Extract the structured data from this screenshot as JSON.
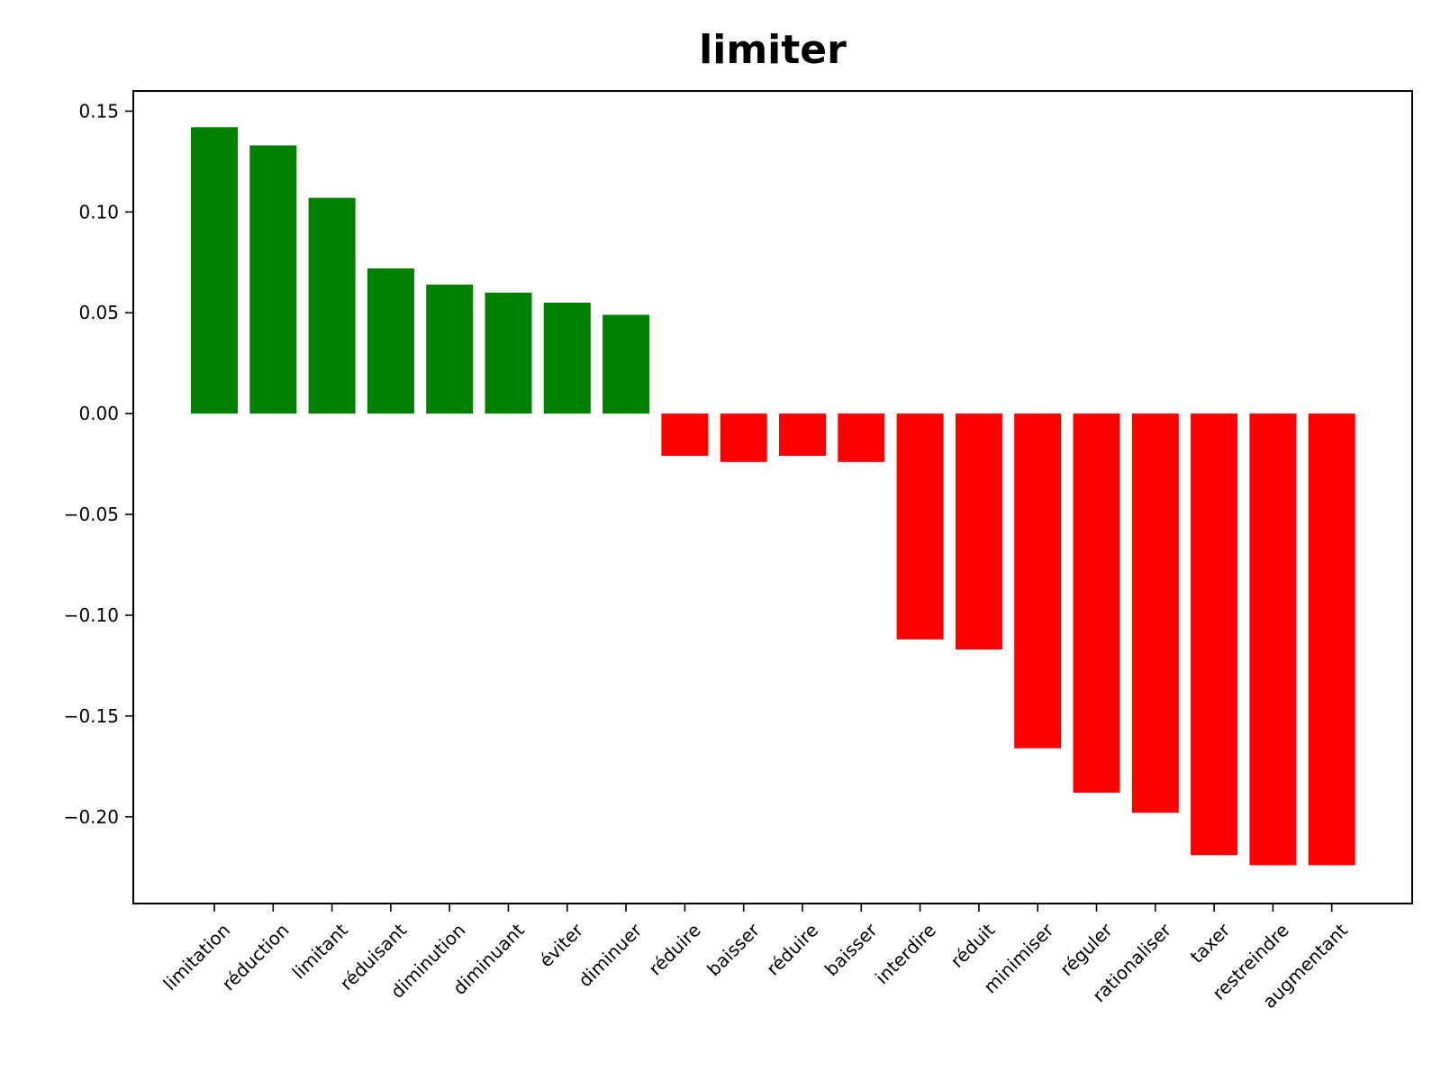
{
  "chart_data": {
    "type": "bar",
    "title": "limiter",
    "xlabel": "",
    "ylabel": "",
    "categories": [
      "limitation",
      "réduction",
      "limitant",
      "réduisant",
      "diminution",
      "diminuant",
      "éviter",
      "diminuer",
      "réduire",
      "baisser",
      "réduire",
      "baisser",
      "interdire",
      "réduit",
      "minimiser",
      "réguler",
      "rationaliser",
      "taxer",
      "restreindre",
      "augmentant"
    ],
    "values": [
      0.142,
      0.133,
      0.107,
      0.072,
      0.064,
      0.06,
      0.055,
      0.049,
      -0.021,
      -0.024,
      -0.021,
      -0.024,
      -0.112,
      -0.117,
      -0.166,
      -0.188,
      -0.198,
      -0.219,
      -0.224,
      -0.224
    ],
    "colors": [
      "#008000",
      "#008000",
      "#008000",
      "#008000",
      "#008000",
      "#008000",
      "#008000",
      "#008000",
      "#ff0000",
      "#ff0000",
      "#ff0000",
      "#ff0000",
      "#ff0000",
      "#ff0000",
      "#ff0000",
      "#ff0000",
      "#ff0000",
      "#ff0000",
      "#ff0000",
      "#ff0000"
    ],
    "ylim": [
      -0.243,
      0.16
    ],
    "yticks": [
      0.15,
      0.1,
      0.05,
      0.0,
      -0.05,
      -0.1,
      -0.15,
      -0.2
    ],
    "ytick_labels": [
      "0.15",
      "0.10",
      "0.05",
      "0.00",
      "−0.05",
      "−0.10",
      "−0.15",
      "−0.20"
    ],
    "grid": false,
    "positive_color": "#008000",
    "negative_color": "#ff0000"
  }
}
